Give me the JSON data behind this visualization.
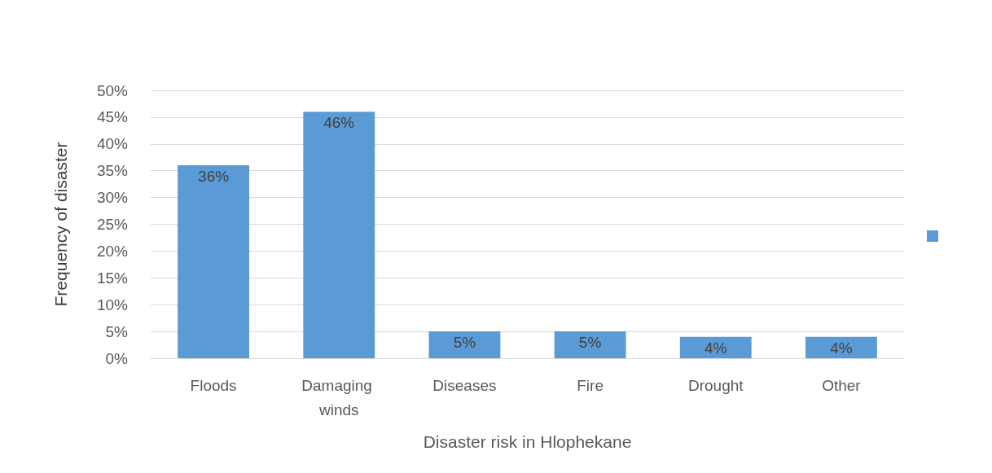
{
  "chart_data": {
    "type": "bar",
    "xlabel": "Disaster risk in Hlophekane",
    "ylabel": "Frequency of disaster",
    "categories": [
      "Floods",
      "Damaging winds",
      "Diseases",
      "Fire",
      "Drought",
      "Other"
    ],
    "series": [
      {
        "color": "#5b9bd5",
        "values": [
          36,
          46,
          5,
          5,
          4,
          4
        ],
        "value_labels": [
          "36%",
          "46%",
          "5%",
          "5%",
          "4%",
          "4%"
        ]
      }
    ],
    "ylim": [
      0,
      50
    ],
    "yticks": [
      {
        "value": 0,
        "label": "0%"
      },
      {
        "value": 5,
        "label": "5%"
      },
      {
        "value": 10,
        "label": "10%"
      },
      {
        "value": 15,
        "label": "15%"
      },
      {
        "value": 20,
        "label": "20%"
      },
      {
        "value": 25,
        "label": "25%"
      },
      {
        "value": 30,
        "label": "30%"
      },
      {
        "value": 35,
        "label": "35%"
      },
      {
        "value": 40,
        "label": "40%"
      },
      {
        "value": 45,
        "label": "45%"
      },
      {
        "value": 50,
        "label": "50%"
      }
    ],
    "grid": "y"
  }
}
